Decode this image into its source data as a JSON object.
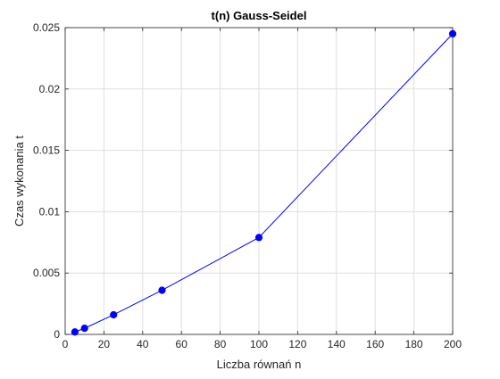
{
  "chart_data": {
    "type": "line",
    "title": "t(n) Gauss-Seidel",
    "xlabel": "Liczba równań n",
    "ylabel": "Czas wykonania t",
    "xlim": [
      0,
      200
    ],
    "ylim": [
      0,
      0.025
    ],
    "x_ticks": [
      0,
      20,
      40,
      60,
      80,
      100,
      120,
      140,
      160,
      180,
      200
    ],
    "y_ticks": [
      0,
      0.005,
      0.01,
      0.015,
      0.02,
      0.025
    ],
    "x_tick_labels": [
      "0",
      "20",
      "40",
      "60",
      "80",
      "100",
      "120",
      "140",
      "160",
      "180",
      "200"
    ],
    "y_tick_labels": [
      "0",
      "0.005",
      "0.01",
      "0.015",
      "0.02",
      "0.025"
    ],
    "grid": true,
    "series": [
      {
        "x": [
          5,
          10,
          25,
          50,
          100,
          200
        ],
        "y": [
          0.0002,
          0.0005,
          0.0016,
          0.0036,
          0.0079,
          0.0245
        ],
        "color": "#0000ff",
        "marker": "circle"
      }
    ]
  }
}
